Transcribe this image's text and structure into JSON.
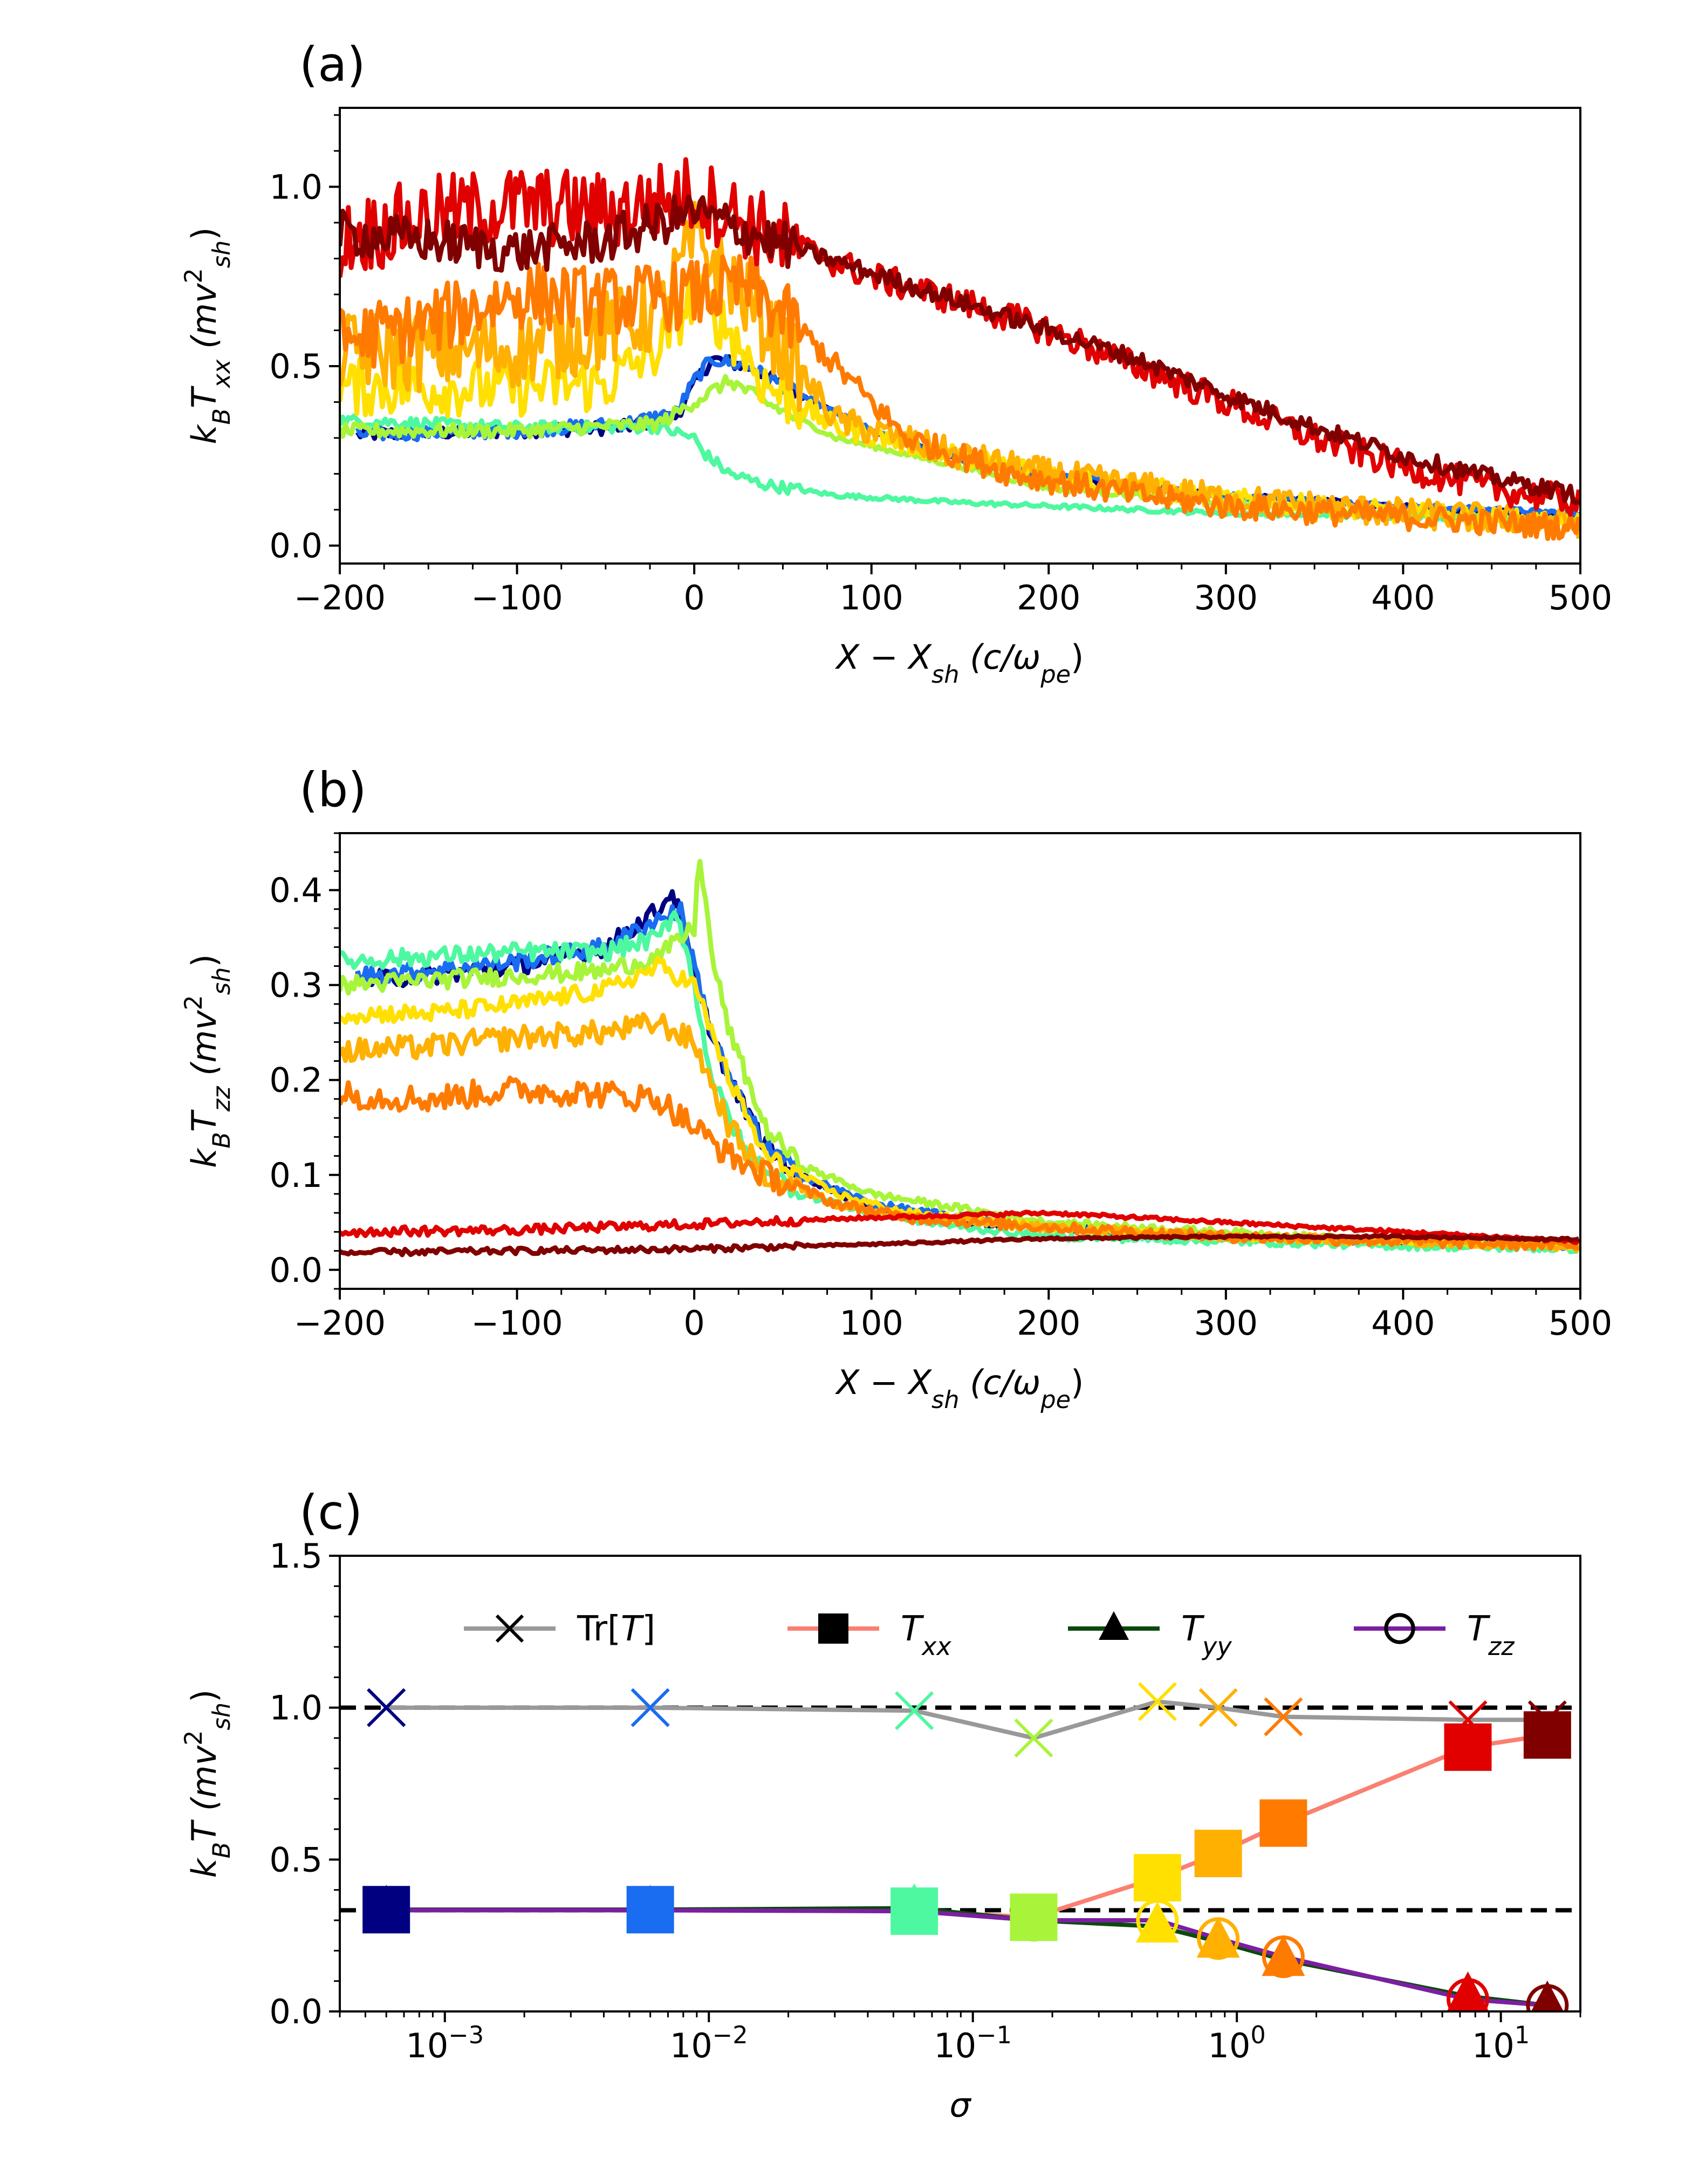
{
  "chart_data": [
    {
      "panel": "(a)",
      "type": "line",
      "ylabel_parts": [
        "k",
        "B",
        "T",
        "xx",
        " (mv",
        "2",
        "sh",
        ")"
      ],
      "xlabel_parts": [
        "X − X",
        "sh",
        " (c/ω",
        "pe",
        ")"
      ],
      "xlim": [
        -200,
        500
      ],
      "ylim": [
        -0.05,
        1.22
      ],
      "xticks": [
        -200,
        -100,
        0,
        100,
        200,
        300,
        400,
        500
      ],
      "xtick_labels": [
        "−200",
        "−100",
        "0",
        "100",
        "200",
        "300",
        "400",
        "500"
      ],
      "yticks": [
        0.0,
        0.5,
        1.0
      ],
      "ytick_labels": [
        "0.0",
        "0.5",
        "1.0"
      ],
      "series": [
        {
          "color": "#000080",
          "x": [
            -190,
            -100,
            -40,
            -10,
            0,
            10,
            30,
            60,
            100,
            150,
            200,
            300,
            400,
            500
          ],
          "y": [
            0.31,
            0.32,
            0.33,
            0.36,
            0.45,
            0.52,
            0.5,
            0.42,
            0.32,
            0.24,
            0.19,
            0.14,
            0.11,
            0.08
          ],
          "noise": 0.012
        },
        {
          "color": "#1a6cf0",
          "x": [
            -190,
            -100,
            -40,
            -10,
            0,
            10,
            30,
            60,
            100,
            150,
            200,
            300,
            400,
            500
          ],
          "y": [
            0.31,
            0.32,
            0.34,
            0.37,
            0.46,
            0.52,
            0.5,
            0.42,
            0.32,
            0.24,
            0.2,
            0.14,
            0.11,
            0.09
          ],
          "noise": 0.012
        },
        {
          "color": "#4ef8a0",
          "x": [
            -200,
            -100,
            -20,
            0,
            5,
            20,
            40,
            80,
            150,
            200,
            300,
            400,
            500
          ],
          "y": [
            0.35,
            0.33,
            0.33,
            0.3,
            0.26,
            0.2,
            0.17,
            0.14,
            0.12,
            0.11,
            0.09,
            0.08,
            0.07
          ],
          "noise": 0.01
        },
        {
          "color": "#a8f43a",
          "x": [
            -200,
            -100,
            -20,
            0,
            20,
            40,
            80,
            150,
            200,
            300,
            400,
            500
          ],
          "y": [
            0.32,
            0.32,
            0.34,
            0.4,
            0.46,
            0.4,
            0.3,
            0.22,
            0.16,
            0.12,
            0.09,
            0.07
          ],
          "noise": 0.012
        },
        {
          "color": "#ffe000",
          "x": [
            -200,
            -100,
            -50,
            -20,
            0,
            20,
            40,
            80,
            150,
            200,
            300,
            400,
            500
          ],
          "y": [
            0.44,
            0.44,
            0.45,
            0.55,
            0.7,
            0.6,
            0.45,
            0.33,
            0.25,
            0.2,
            0.13,
            0.09,
            0.06
          ],
          "noise": 0.05
        },
        {
          "color": "#ffb000",
          "x": [
            -200,
            -150,
            -100,
            -50,
            -20,
            0,
            20,
            50,
            80,
            150,
            200,
            300,
            400,
            500
          ],
          "y": [
            0.54,
            0.54,
            0.55,
            0.6,
            0.65,
            0.85,
            0.75,
            0.55,
            0.35,
            0.25,
            0.2,
            0.13,
            0.09,
            0.06
          ],
          "noise": 0.07
        },
        {
          "color": "#ff7b00",
          "x": [
            -200,
            -150,
            -100,
            -50,
            0,
            30,
            60,
            80,
            120,
            180,
            250,
            300,
            400,
            500
          ],
          "y": [
            0.57,
            0.62,
            0.7,
            0.68,
            0.7,
            0.72,
            0.6,
            0.5,
            0.3,
            0.2,
            0.14,
            0.11,
            0.08,
            0.05
          ],
          "noise": 0.06
        },
        {
          "color": "#e00000",
          "x": [
            -200,
            -150,
            -100,
            -50,
            0,
            50,
            100,
            150,
            200,
            250,
            300,
            350,
            400,
            450,
            500
          ],
          "y": [
            0.85,
            0.92,
            0.95,
            0.93,
            0.98,
            0.85,
            0.75,
            0.68,
            0.6,
            0.5,
            0.4,
            0.3,
            0.22,
            0.16,
            0.12
          ],
          "noise": 0.07
        },
        {
          "color": "#800000",
          "x": [
            -200,
            -150,
            -100,
            -50,
            0,
            50,
            100,
            150,
            200,
            250,
            300,
            350,
            400,
            450,
            500
          ],
          "y": [
            0.87,
            0.85,
            0.82,
            0.85,
            0.93,
            0.84,
            0.76,
            0.68,
            0.6,
            0.52,
            0.42,
            0.33,
            0.25,
            0.19,
            0.14
          ],
          "noise": 0.04
        }
      ]
    },
    {
      "panel": "(b)",
      "type": "line",
      "ylabel_parts": [
        "k",
        "B",
        "T",
        "zz",
        " (mv",
        "2",
        "sh",
        ")"
      ],
      "xlabel_parts": [
        "X − X",
        "sh",
        " (c/ω",
        "pe",
        ")"
      ],
      "xlim": [
        -200,
        500
      ],
      "ylim": [
        -0.02,
        0.46
      ],
      "xticks": [
        -200,
        -100,
        0,
        100,
        200,
        300,
        400,
        500
      ],
      "xtick_labels": [
        "−200",
        "−100",
        "0",
        "100",
        "200",
        "300",
        "400",
        "500"
      ],
      "yticks": [
        0.0,
        0.1,
        0.2,
        0.3,
        0.4
      ],
      "ytick_labels": [
        "0.0",
        "0.1",
        "0.2",
        "0.3",
        "0.4"
      ],
      "series": [
        {
          "color": "#000080",
          "x": [
            -190,
            -150,
            -100,
            -50,
            -20,
            -12,
            -5,
            0,
            10,
            20,
            40,
            60,
            100,
            150,
            200,
            300,
            400,
            500
          ],
          "y": [
            0.305,
            0.31,
            0.32,
            0.34,
            0.38,
            0.4,
            0.35,
            0.3,
            0.25,
            0.2,
            0.13,
            0.1,
            0.065,
            0.05,
            0.045,
            0.035,
            0.03,
            0.025
          ],
          "noise": 0.006
        },
        {
          "color": "#1a6cf0",
          "x": [
            -190,
            -150,
            -100,
            -50,
            -20,
            -8,
            0,
            10,
            20,
            40,
            60,
            100,
            150,
            200,
            300,
            400,
            500
          ],
          "y": [
            0.31,
            0.315,
            0.325,
            0.34,
            0.37,
            0.38,
            0.32,
            0.25,
            0.2,
            0.13,
            0.1,
            0.07,
            0.055,
            0.045,
            0.035,
            0.03,
            0.025
          ],
          "noise": 0.006
        },
        {
          "color": "#4ef8a0",
          "x": [
            -200,
            -150,
            -100,
            -50,
            -20,
            -10,
            0,
            10,
            30,
            60,
            100,
            150,
            200,
            300,
            400,
            500
          ],
          "y": [
            0.325,
            0.33,
            0.335,
            0.335,
            0.35,
            0.38,
            0.3,
            0.2,
            0.12,
            0.08,
            0.06,
            0.045,
            0.035,
            0.03,
            0.025,
            0.022
          ],
          "noise": 0.006
        },
        {
          "color": "#a8f43a",
          "x": [
            -200,
            -150,
            -100,
            -50,
            -20,
            0,
            3,
            10,
            20,
            40,
            60,
            100,
            150,
            200,
            300,
            400,
            500
          ],
          "y": [
            0.3,
            0.305,
            0.31,
            0.315,
            0.33,
            0.36,
            0.44,
            0.33,
            0.25,
            0.15,
            0.11,
            0.08,
            0.065,
            0.05,
            0.04,
            0.03,
            0.025
          ],
          "noise": 0.006
        },
        {
          "color": "#ffe000",
          "x": [
            -200,
            -150,
            -100,
            -50,
            -20,
            0,
            20,
            40,
            80,
            120,
            200,
            300,
            400,
            500
          ],
          "y": [
            0.27,
            0.27,
            0.28,
            0.295,
            0.32,
            0.3,
            0.2,
            0.12,
            0.08,
            0.06,
            0.045,
            0.035,
            0.03,
            0.025
          ],
          "noise": 0.006
        },
        {
          "color": "#ffb000",
          "x": [
            -200,
            -150,
            -100,
            -50,
            -20,
            0,
            20,
            40,
            80,
            120,
            200,
            300,
            400,
            500
          ],
          "y": [
            0.23,
            0.235,
            0.245,
            0.25,
            0.26,
            0.24,
            0.15,
            0.1,
            0.07,
            0.055,
            0.045,
            0.035,
            0.03,
            0.025
          ],
          "noise": 0.008
        },
        {
          "color": "#ff7b00",
          "x": [
            -200,
            -150,
            -100,
            -50,
            -20,
            0,
            20,
            40,
            80,
            120,
            200,
            300,
            400,
            500
          ],
          "y": [
            0.185,
            0.18,
            0.19,
            0.185,
            0.18,
            0.15,
            0.12,
            0.1,
            0.07,
            0.055,
            0.045,
            0.035,
            0.03,
            0.025
          ],
          "noise": 0.009
        },
        {
          "color": "#e00000",
          "x": [
            -200,
            -100,
            0,
            100,
            200,
            300,
            400,
            500
          ],
          "y": [
            0.04,
            0.042,
            0.048,
            0.055,
            0.06,
            0.05,
            0.04,
            0.03
          ],
          "noise": 0.003
        },
        {
          "color": "#800000",
          "x": [
            -200,
            -100,
            0,
            100,
            200,
            300,
            400,
            500
          ],
          "y": [
            0.018,
            0.02,
            0.022,
            0.027,
            0.033,
            0.035,
            0.035,
            0.032
          ],
          "noise": 0.002
        }
      ]
    },
    {
      "panel": "(c)",
      "type": "scatter",
      "xscale": "log",
      "xlabel": "σ",
      "ylabel_parts": [
        "k",
        "B",
        "T (mv",
        "2",
        "sh",
        ")"
      ],
      "xlim": [
        0.0004,
        20
      ],
      "ylim": [
        0.0,
        1.5
      ],
      "xticks": [
        0.001,
        0.01,
        0.1,
        1,
        10
      ],
      "xtick_labels": [
        [
          "10",
          "−3"
        ],
        [
          "10",
          "−2"
        ],
        [
          "10",
          "−1"
        ],
        [
          "10",
          "0"
        ],
        [
          "10",
          "1"
        ]
      ],
      "yticks": [
        0.0,
        0.5,
        1.0,
        1.5
      ],
      "ytick_labels": [
        "0.0",
        "0.5",
        "1.0",
        "1.5"
      ],
      "hlines": [
        1.0,
        0.333
      ],
      "sigma": [
        0.0006,
        0.006,
        0.06,
        0.17,
        0.5,
        0.85,
        1.5,
        7.5,
        15
      ],
      "point_colors": [
        "#000080",
        "#1a6cf0",
        "#4ef8a0",
        "#a8f43a",
        "#ffe000",
        "#ffb000",
        "#ff7b00",
        "#e00000",
        "#800000"
      ],
      "series": [
        {
          "name_parts": [
            "Tr[",
            "T",
            "]"
          ],
          "marker": "x",
          "line_color": "#999999",
          "values": [
            1.0,
            1.0,
            0.99,
            0.9,
            1.02,
            1.0,
            0.97,
            0.96,
            0.96
          ]
        },
        {
          "name_parts": [
            "T",
            "xx"
          ],
          "marker": "square",
          "line_color": "#fa8072",
          "values": [
            0.335,
            0.335,
            0.33,
            0.31,
            0.44,
            0.52,
            0.62,
            0.87,
            0.91
          ]
        },
        {
          "name_parts": [
            "T",
            "yy"
          ],
          "marker": "triangle",
          "line_color": "#0b4a0b",
          "values": [
            0.335,
            0.335,
            0.34,
            0.3,
            0.28,
            0.23,
            0.17,
            0.05,
            0.02
          ]
        },
        {
          "name_parts": [
            "T",
            "zz"
          ],
          "marker": "circle",
          "line_color": "#7b1fa2",
          "values": [
            0.333,
            0.333,
            0.33,
            0.3,
            0.3,
            0.24,
            0.18,
            0.04,
            0.02
          ]
        }
      ]
    }
  ]
}
